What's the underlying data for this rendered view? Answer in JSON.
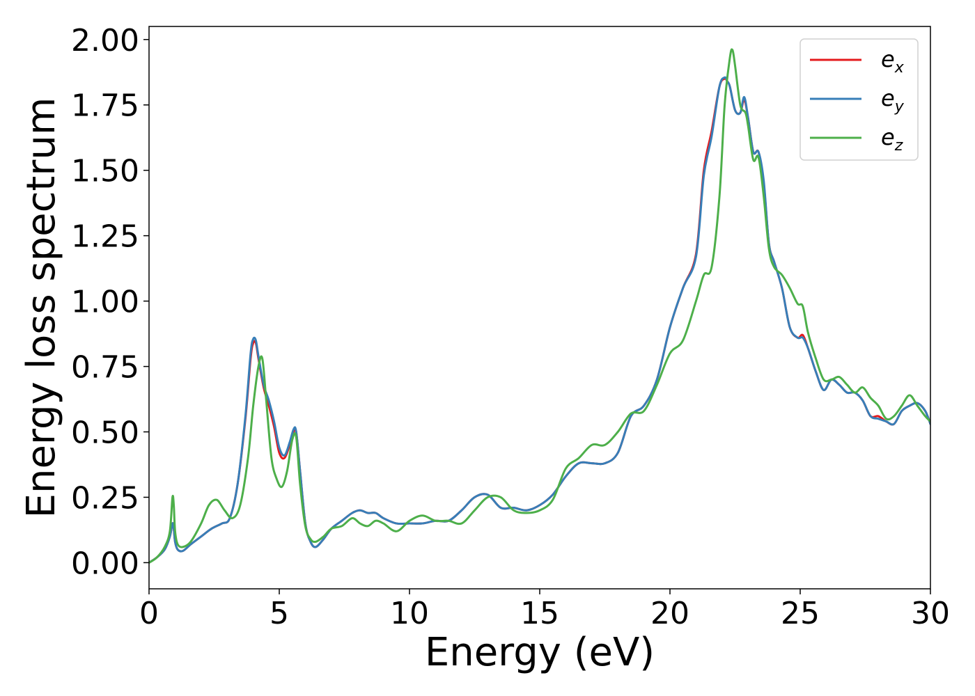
{
  "chart_data": {
    "type": "line",
    "title": "",
    "xlabel": "Energy (eV)",
    "ylabel": "Energy loss spectrum",
    "xlim": [
      0,
      30
    ],
    "ylim": [
      -0.1,
      2.05
    ],
    "xticks": [
      0,
      5,
      10,
      15,
      20,
      25,
      30
    ],
    "xtick_labels": [
      "0",
      "5",
      "10",
      "15",
      "20",
      "25",
      "30"
    ],
    "yticks": [
      0,
      0.25,
      0.5,
      0.75,
      1.0,
      1.25,
      1.5,
      1.75,
      2.0
    ],
    "ytick_labels": [
      "0.00",
      "0.25",
      "0.50",
      "0.75",
      "1.00",
      "1.25",
      "1.50",
      "1.75",
      "2.00"
    ],
    "grid": false,
    "legend_position": "top-right",
    "series": [
      {
        "name": "e",
        "subscript": "x",
        "color": "#e41a1c",
        "x": [
          0,
          0.3,
          0.6,
          0.8,
          0.9,
          0.95,
          1.0,
          1.1,
          1.3,
          1.6,
          2.0,
          2.4,
          2.8,
          3.1,
          3.4,
          3.7,
          3.9,
          4.0,
          4.1,
          4.2,
          4.4,
          4.6,
          4.8,
          5.0,
          5.2,
          5.4,
          5.55,
          5.65,
          5.8,
          6.0,
          6.2,
          6.4,
          6.7,
          7.0,
          7.4,
          7.8,
          8.1,
          8.4,
          8.7,
          9.0,
          9.5,
          10.0,
          10.5,
          11.0,
          11.5,
          12.0,
          12.5,
          13.0,
          13.5,
          14.0,
          14.5,
          15.0,
          15.5,
          16.0,
          16.5,
          17.0,
          17.5,
          18.0,
          18.5,
          19.0,
          19.5,
          20.0,
          20.5,
          21.0,
          21.3,
          21.6,
          21.9,
          22.1,
          22.2,
          22.3,
          22.5,
          22.7,
          22.85,
          23.0,
          23.2,
          23.4,
          23.6,
          23.8,
          24.0,
          24.3,
          24.6,
          24.9,
          25.1,
          25.3,
          25.6,
          25.9,
          26.2,
          26.5,
          26.8,
          27.1,
          27.4,
          27.7,
          28.0,
          28.3,
          28.6,
          28.9,
          29.2,
          29.5,
          29.8,
          30.0
        ],
        "y": [
          0.0,
          0.02,
          0.05,
          0.1,
          0.15,
          0.13,
          0.08,
          0.05,
          0.045,
          0.07,
          0.1,
          0.13,
          0.15,
          0.17,
          0.3,
          0.55,
          0.78,
          0.84,
          0.84,
          0.78,
          0.67,
          0.6,
          0.52,
          0.42,
          0.4,
          0.45,
          0.5,
          0.5,
          0.35,
          0.15,
          0.08,
          0.06,
          0.09,
          0.13,
          0.16,
          0.19,
          0.2,
          0.19,
          0.19,
          0.17,
          0.15,
          0.15,
          0.15,
          0.16,
          0.16,
          0.2,
          0.25,
          0.26,
          0.21,
          0.21,
          0.2,
          0.22,
          0.26,
          0.33,
          0.38,
          0.38,
          0.38,
          0.42,
          0.56,
          0.6,
          0.7,
          0.9,
          1.05,
          1.18,
          1.5,
          1.65,
          1.82,
          1.85,
          1.84,
          1.82,
          1.73,
          1.72,
          1.77,
          1.7,
          1.57,
          1.57,
          1.45,
          1.22,
          1.15,
          1.05,
          0.9,
          0.86,
          0.87,
          0.82,
          0.73,
          0.66,
          0.7,
          0.68,
          0.65,
          0.65,
          0.62,
          0.56,
          0.56,
          0.54,
          0.53,
          0.58,
          0.6,
          0.61,
          0.58,
          0.53
        ]
      },
      {
        "name": "e",
        "subscript": "y",
        "color": "#377eb8",
        "x": [
          0,
          0.3,
          0.6,
          0.8,
          0.9,
          0.95,
          1.0,
          1.1,
          1.3,
          1.6,
          2.0,
          2.4,
          2.8,
          3.1,
          3.4,
          3.7,
          3.9,
          4.0,
          4.1,
          4.2,
          4.4,
          4.6,
          4.8,
          5.0,
          5.2,
          5.4,
          5.55,
          5.65,
          5.8,
          6.0,
          6.2,
          6.4,
          6.7,
          7.0,
          7.4,
          7.8,
          8.1,
          8.4,
          8.7,
          9.0,
          9.5,
          10.0,
          10.5,
          11.0,
          11.5,
          12.0,
          12.5,
          13.0,
          13.5,
          14.0,
          14.5,
          15.0,
          15.5,
          16.0,
          16.5,
          17.0,
          17.5,
          18.0,
          18.5,
          19.0,
          19.5,
          20.0,
          20.5,
          21.0,
          21.3,
          21.6,
          21.9,
          22.1,
          22.2,
          22.3,
          22.5,
          22.7,
          22.85,
          23.0,
          23.2,
          23.4,
          23.6,
          23.8,
          24.0,
          24.3,
          24.6,
          24.9,
          25.1,
          25.3,
          25.6,
          25.9,
          26.2,
          26.5,
          26.8,
          27.1,
          27.4,
          27.7,
          28.0,
          28.3,
          28.6,
          28.9,
          29.2,
          29.5,
          29.8,
          30.0
        ],
        "y": [
          0.0,
          0.02,
          0.05,
          0.1,
          0.15,
          0.13,
          0.08,
          0.05,
          0.045,
          0.07,
          0.1,
          0.13,
          0.15,
          0.17,
          0.3,
          0.56,
          0.8,
          0.855,
          0.85,
          0.79,
          0.68,
          0.62,
          0.54,
          0.44,
          0.41,
          0.46,
          0.51,
          0.5,
          0.35,
          0.15,
          0.08,
          0.06,
          0.09,
          0.13,
          0.16,
          0.19,
          0.2,
          0.19,
          0.19,
          0.17,
          0.15,
          0.15,
          0.15,
          0.16,
          0.16,
          0.2,
          0.25,
          0.26,
          0.21,
          0.21,
          0.2,
          0.22,
          0.26,
          0.33,
          0.38,
          0.38,
          0.38,
          0.42,
          0.56,
          0.6,
          0.7,
          0.9,
          1.05,
          1.17,
          1.48,
          1.63,
          1.82,
          1.855,
          1.84,
          1.82,
          1.73,
          1.72,
          1.78,
          1.7,
          1.57,
          1.57,
          1.46,
          1.22,
          1.15,
          1.05,
          0.9,
          0.86,
          0.86,
          0.82,
          0.73,
          0.66,
          0.7,
          0.68,
          0.65,
          0.65,
          0.62,
          0.56,
          0.55,
          0.54,
          0.53,
          0.58,
          0.6,
          0.61,
          0.58,
          0.53
        ]
      },
      {
        "name": "e",
        "subscript": "z",
        "color": "#4daf4a",
        "x": [
          0,
          0.3,
          0.6,
          0.8,
          0.9,
          0.95,
          1.0,
          1.1,
          1.3,
          1.6,
          2.0,
          2.3,
          2.6,
          2.9,
          3.2,
          3.5,
          3.8,
          4.0,
          4.2,
          4.35,
          4.5,
          4.7,
          4.9,
          5.1,
          5.3,
          5.5,
          5.65,
          5.8,
          6.0,
          6.2,
          6.4,
          6.7,
          7.0,
          7.4,
          7.8,
          8.1,
          8.4,
          8.7,
          9.0,
          9.5,
          10.0,
          10.5,
          11.0,
          11.5,
          12.0,
          12.5,
          13.0,
          13.5,
          14.0,
          14.5,
          15.0,
          15.5,
          16.0,
          16.5,
          17.0,
          17.5,
          18.0,
          18.5,
          19.0,
          19.5,
          20.0,
          20.5,
          21.0,
          21.3,
          21.6,
          21.9,
          22.1,
          22.3,
          22.4,
          22.5,
          22.7,
          22.9,
          23.0,
          23.2,
          23.4,
          23.6,
          23.8,
          24.0,
          24.3,
          24.6,
          24.9,
          25.1,
          25.3,
          25.6,
          25.9,
          26.2,
          26.5,
          26.8,
          27.1,
          27.4,
          27.7,
          28.0,
          28.3,
          28.6,
          28.9,
          29.2,
          29.5,
          29.8,
          30.0
        ],
        "y": [
          0.0,
          0.02,
          0.06,
          0.12,
          0.25,
          0.22,
          0.12,
          0.07,
          0.06,
          0.08,
          0.15,
          0.22,
          0.24,
          0.2,
          0.17,
          0.22,
          0.4,
          0.6,
          0.75,
          0.78,
          0.62,
          0.4,
          0.32,
          0.29,
          0.35,
          0.47,
          0.48,
          0.3,
          0.14,
          0.09,
          0.08,
          0.1,
          0.13,
          0.14,
          0.17,
          0.15,
          0.14,
          0.16,
          0.15,
          0.12,
          0.16,
          0.18,
          0.16,
          0.16,
          0.15,
          0.2,
          0.25,
          0.25,
          0.2,
          0.19,
          0.2,
          0.24,
          0.36,
          0.4,
          0.45,
          0.45,
          0.5,
          0.57,
          0.58,
          0.68,
          0.8,
          0.85,
          1.0,
          1.1,
          1.13,
          1.4,
          1.75,
          1.93,
          1.96,
          1.9,
          1.75,
          1.72,
          1.67,
          1.54,
          1.55,
          1.4,
          1.2,
          1.13,
          1.1,
          1.05,
          0.99,
          0.98,
          0.88,
          0.78,
          0.7,
          0.7,
          0.71,
          0.68,
          0.65,
          0.67,
          0.63,
          0.6,
          0.55,
          0.56,
          0.6,
          0.64,
          0.6,
          0.56,
          0.54
        ]
      }
    ]
  }
}
